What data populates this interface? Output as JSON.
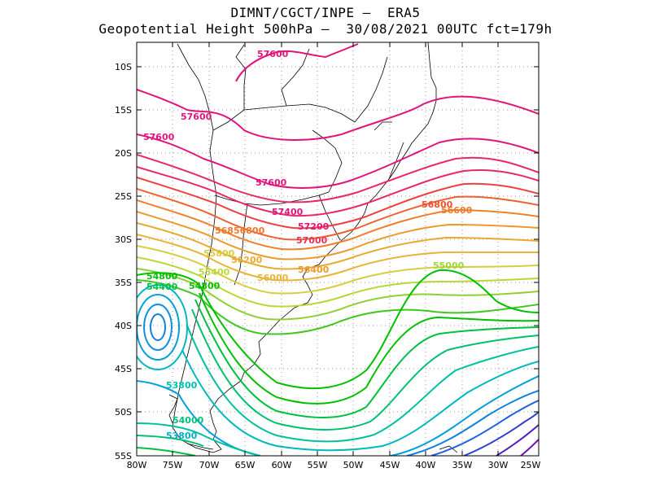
{
  "header": {
    "line1": "DIMNT/CGCT/INPE –  ERA5",
    "line2": "Geopotential Height 500hPa –  30/08/2021 00UTC fct=179h"
  },
  "axes": {
    "lat_ticks": [
      "10S",
      "15S",
      "20S",
      "25S",
      "30S",
      "35S",
      "40S",
      "45S",
      "50S",
      "55S"
    ],
    "lon_ticks": [
      "80W",
      "75W",
      "70W",
      "65W",
      "60W",
      "55W",
      "50W",
      "45W",
      "40W",
      "35W",
      "30W",
      "25W"
    ]
  },
  "contour_labels": [
    {
      "text": "57600",
      "color": "#e0147c"
    },
    {
      "text": "57600",
      "color": "#e0147c"
    },
    {
      "text": "57600",
      "color": "#e0147c"
    },
    {
      "text": "57600",
      "color": "#e0147c"
    },
    {
      "text": "57400",
      "color": "#e0147c"
    },
    {
      "text": "57200",
      "color": "#e0147c"
    },
    {
      "text": "57000",
      "color": "#e8305a"
    },
    {
      "text": "56800",
      "color": "#f05030"
    },
    {
      "text": "56600",
      "color": "#f07a2a"
    },
    {
      "text": "56856800",
      "color": "#f07a2a"
    },
    {
      "text": "56400",
      "color": "#ec9a2a"
    },
    {
      "text": "56200",
      "color": "#e8aa30"
    },
    {
      "text": "56000",
      "color": "#e8b43a"
    },
    {
      "text": "55800",
      "color": "#d8cc40"
    },
    {
      "text": "55400",
      "color": "#bcd83c"
    },
    {
      "text": "55000",
      "color": "#9ed838"
    },
    {
      "text": "54800",
      "color": "#00c000"
    },
    {
      "text": "54800",
      "color": "#00c000"
    },
    {
      "text": "54400",
      "color": "#00c040"
    },
    {
      "text": "53800",
      "color": "#00c0b0"
    },
    {
      "text": "54000",
      "color": "#00c080"
    },
    {
      "text": "53800",
      "color": "#00b0c8"
    }
  ],
  "colors": {
    "contours": [
      "#e0147c",
      "#e82a64",
      "#ee4040",
      "#f06030",
      "#f0802a",
      "#ec9a2a",
      "#e8b43a",
      "#d8cc40",
      "#b8d838",
      "#90d030",
      "#40c820",
      "#00c000",
      "#00c040",
      "#00c070",
      "#00c0a0",
      "#00b8c0",
      "#00a0d8",
      "#1080e0",
      "#2060e0",
      "#3040d0",
      "#5020c0",
      "#7010b0"
    ],
    "coast": "#000000",
    "grid": "#999999"
  }
}
